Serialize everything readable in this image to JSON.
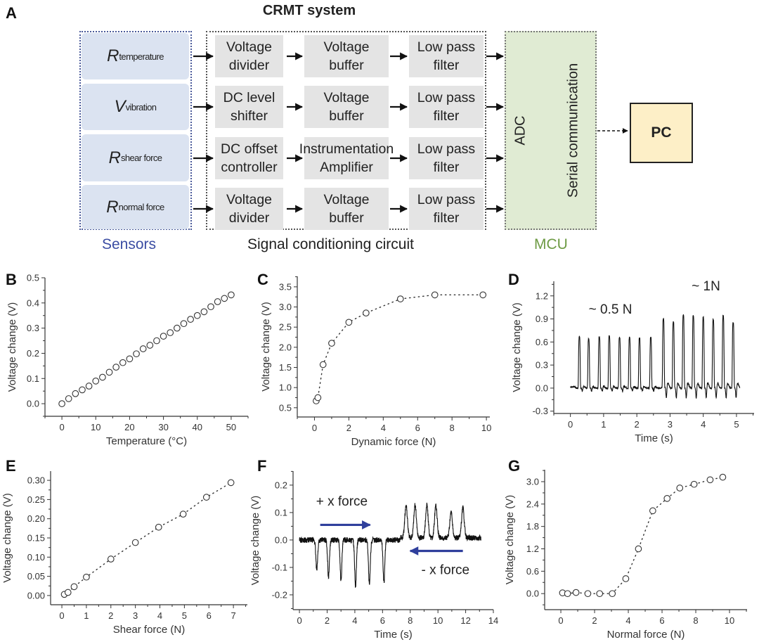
{
  "figure": {
    "title": "CRMT system",
    "panel_letters": {
      "A": "A",
      "B": "B",
      "C": "C",
      "D": "D",
      "E": "E",
      "F": "F",
      "G": "G"
    },
    "sensors": [
      {
        "symbol": "R",
        "sub": "temperature"
      },
      {
        "symbol": "V",
        "sub": "vibration"
      },
      {
        "symbol": "R",
        "sub": "shear force"
      },
      {
        "symbol": "R",
        "sub": "normal force"
      }
    ],
    "circuit_rows": [
      [
        "Voltage\ndivider",
        "Voltage\nbuffer",
        "Low pass\nfilter"
      ],
      [
        "DC level\nshifter",
        "Voltage\nbuffer",
        "Low pass\nfilter"
      ],
      [
        "DC offset\ncontroller",
        "Instrumentation\nAmplifier",
        "Low pass\nfilter"
      ],
      [
        "Voltage\ndivider",
        "Voltage\nbuffer",
        "Low pass\nfilter"
      ]
    ],
    "mcu": {
      "adc": "ADC",
      "serial": "Serial communication"
    },
    "pc": "PC",
    "captions": {
      "sensors": "Sensors",
      "circuit": "Signal conditioning circuit",
      "mcu": "MCU"
    },
    "colors": {
      "sensor_fill": "#dbe3f1",
      "block_fill": "#e4e4e4",
      "mcu_fill": "#e0ebd3",
      "pc_fill": "#fdefc7",
      "sensors_caption": "#3b4da3",
      "mcu_caption": "#6e9b45",
      "arrow_blue": "#2f3f9c"
    }
  },
  "chart_data": [
    {
      "id": "B",
      "type": "scatter",
      "xlabel": "Temperature (°C)",
      "ylabel": "Voltage change (V)",
      "xlim": [
        -5,
        55
      ],
      "ylim": [
        -0.05,
        0.5
      ],
      "xticks": [
        0,
        10,
        20,
        30,
        40,
        50
      ],
      "xtick_labels": [
        "0",
        "10",
        "20",
        "30",
        "40",
        "50"
      ],
      "yticks": [
        0,
        0.1,
        0.2,
        0.3,
        0.4,
        0.5
      ],
      "ytick_labels": [
        "0.0",
        "0.1",
        "0.2",
        "0.3",
        "0.4",
        "0.5"
      ],
      "line": false,
      "x": [
        0,
        2,
        4,
        6,
        8,
        10,
        12,
        14,
        16,
        18,
        20,
        22,
        24,
        26,
        28,
        30,
        32,
        34,
        36,
        38,
        40,
        42,
        44,
        46,
        48,
        50
      ],
      "y": [
        0,
        0.02,
        0.04,
        0.055,
        0.07,
        0.09,
        0.105,
        0.125,
        0.145,
        0.163,
        0.178,
        0.198,
        0.218,
        0.232,
        0.25,
        0.268,
        0.282,
        0.3,
        0.318,
        0.335,
        0.35,
        0.365,
        0.385,
        0.405,
        0.418,
        0.432
      ]
    },
    {
      "id": "C",
      "type": "scatter",
      "xlabel": "Dynamic force (N)",
      "ylabel": "Voltage change (V)",
      "xlim": [
        -1,
        10.2
      ],
      "ylim": [
        0.27,
        3.76
      ],
      "xticks": [
        0,
        2,
        4,
        6,
        8,
        10
      ],
      "xtick_labels": [
        "0",
        "2",
        "4",
        "6",
        "8",
        "10"
      ],
      "yticks": [
        0.5,
        1,
        1.5,
        2,
        2.5,
        3,
        3.5
      ],
      "ytick_labels": [
        "0.5",
        "1.0",
        "1.5",
        "2.0",
        "2.5",
        "3.0",
        "3.5"
      ],
      "line": true,
      "x": [
        0.1,
        0.2,
        0.5,
        1,
        2,
        3,
        5,
        7,
        9.8
      ],
      "y": [
        0.67,
        0.75,
        1.57,
        2.1,
        2.62,
        2.85,
        3.2,
        3.3,
        3.3
      ]
    },
    {
      "id": "D",
      "type": "line",
      "xlabel": "Time (s)",
      "ylabel": "Voltage change (V)",
      "xlim": [
        -0.5,
        5.53
      ],
      "ylim": [
        -0.33,
        1.39
      ],
      "xticks": [
        0,
        1,
        2,
        3,
        4,
        5
      ],
      "xtick_labels": [
        "0",
        "1",
        "2",
        "3",
        "4",
        "5"
      ],
      "yticks": [
        -0.3,
        0,
        0.3,
        0.6,
        0.9,
        1.2
      ],
      "ytick_labels": [
        "-0.3",
        "0.0",
        "0.3",
        "0.6",
        "0.9",
        "1.2"
      ],
      "t_range": [
        0,
        5.1
      ],
      "peaks": [
        [
          0.27,
          0.67
        ],
        [
          0.55,
          0.64
        ],
        [
          0.87,
          0.67
        ],
        [
          1.17,
          0.68
        ],
        [
          1.48,
          0.66
        ],
        [
          1.78,
          0.66
        ],
        [
          2.08,
          0.65
        ],
        [
          2.42,
          0.66
        ],
        [
          2.8,
          0.9
        ],
        [
          3.1,
          0.86
        ],
        [
          3.4,
          0.95
        ],
        [
          3.7,
          0.94
        ],
        [
          4.0,
          0.92
        ],
        [
          4.3,
          0.89
        ],
        [
          4.6,
          0.94
        ],
        [
          4.9,
          0.85
        ]
      ],
      "annotations": [
        {
          "text": "~ 0.5 N",
          "x": 0.55,
          "y": 0.97
        },
        {
          "text": "~ 1N",
          "x": 3.65,
          "y": 1.27
        }
      ]
    },
    {
      "id": "E",
      "type": "scatter",
      "xlabel": "Shear force (N)",
      "ylabel": "Voltage change (V)",
      "xlim": [
        -0.46,
        7.57
      ],
      "ylim": [
        -0.024,
        0.324
      ],
      "xticks": [
        0,
        1,
        2,
        3,
        4,
        5,
        6,
        7
      ],
      "xtick_labels": [
        "0",
        "1",
        "2",
        "3",
        "4",
        "5",
        "6",
        "7"
      ],
      "yticks": [
        0,
        0.05,
        0.1,
        0.15,
        0.2,
        0.25,
        0.3
      ],
      "ytick_labels": [
        "0.00",
        "0.05",
        "0.10",
        "0.15",
        "0.20",
        "0.25",
        "0.30"
      ],
      "line": true,
      "x": [
        0.1,
        0.25,
        0.5,
        1,
        2,
        3,
        3.95,
        4.95,
        5.9,
        6.9
      ],
      "y": [
        0.003,
        0.008,
        0.023,
        0.048,
        0.095,
        0.138,
        0.178,
        0.212,
        0.256,
        0.294
      ]
    },
    {
      "id": "F",
      "type": "line",
      "xlabel": "Time (s)",
      "ylabel": "Voltage change (V)",
      "xlim": [
        -0.46,
        14
      ],
      "ylim": [
        -0.254,
        0.251
      ],
      "xticks": [
        0,
        2,
        4,
        6,
        8,
        10,
        12,
        14
      ],
      "xtick_labels": [
        "0",
        "2",
        "4",
        "6",
        "8",
        "10",
        "12",
        "14"
      ],
      "yticks": [
        -0.2,
        -0.1,
        0,
        0.1,
        0.2
      ],
      "ytick_labels": [
        "-0.2",
        "-0.1",
        "0.0",
        "0.1",
        "0.2"
      ],
      "t_range": [
        0,
        13.1
      ],
      "peaks": [
        [
          1.25,
          -0.11
        ],
        [
          2.1,
          -0.135
        ],
        [
          3.0,
          -0.145
        ],
        [
          4.05,
          -0.17
        ],
        [
          5.05,
          -0.165
        ],
        [
          6.1,
          -0.155
        ],
        [
          7.7,
          0.12
        ],
        [
          8.35,
          0.12
        ],
        [
          9.2,
          0.12
        ],
        [
          9.85,
          0.12
        ],
        [
          10.95,
          0.095
        ],
        [
          11.8,
          0.11
        ]
      ],
      "annotations": [
        {
          "text": "+ x force",
          "x": 1.2,
          "y": 0.125
        },
        {
          "text": "- x force",
          "x": 8.8,
          "y": -0.125
        }
      ],
      "arrows": [
        {
          "from": [
            1.5,
            0.055
          ],
          "to": [
            5.1,
            0.055
          ]
        },
        {
          "from": [
            11.8,
            -0.04
          ],
          "to": [
            8.0,
            -0.04
          ]
        }
      ]
    },
    {
      "id": "G",
      "type": "scatter",
      "xlabel": "Normal force (N)",
      "ylabel": "Voltage change (V)",
      "xlim": [
        -0.96,
        11.04
      ],
      "ylim": [
        -0.43,
        3.32
      ],
      "xticks": [
        0,
        2,
        4,
        6,
        8,
        10
      ],
      "xtick_labels": [
        "0",
        "2",
        "4",
        "6",
        "8",
        "10"
      ],
      "yticks": [
        0,
        0.6,
        1.2,
        1.8,
        2.4,
        3.0
      ],
      "ytick_labels": [
        "0.0",
        "0.6",
        "1.2",
        "1.8",
        "2.4",
        "3.0"
      ],
      "line": true,
      "x": [
        0.1,
        0.4,
        0.9,
        1.6,
        2.3,
        3.05,
        3.85,
        4.6,
        5.45,
        6.3,
        7.05,
        7.9,
        8.85,
        9.6
      ],
      "y": [
        0.02,
        0,
        0.03,
        0,
        0,
        0,
        0.4,
        1.2,
        2.22,
        2.55,
        2.83,
        2.93,
        3.05,
        3.12
      ]
    }
  ]
}
